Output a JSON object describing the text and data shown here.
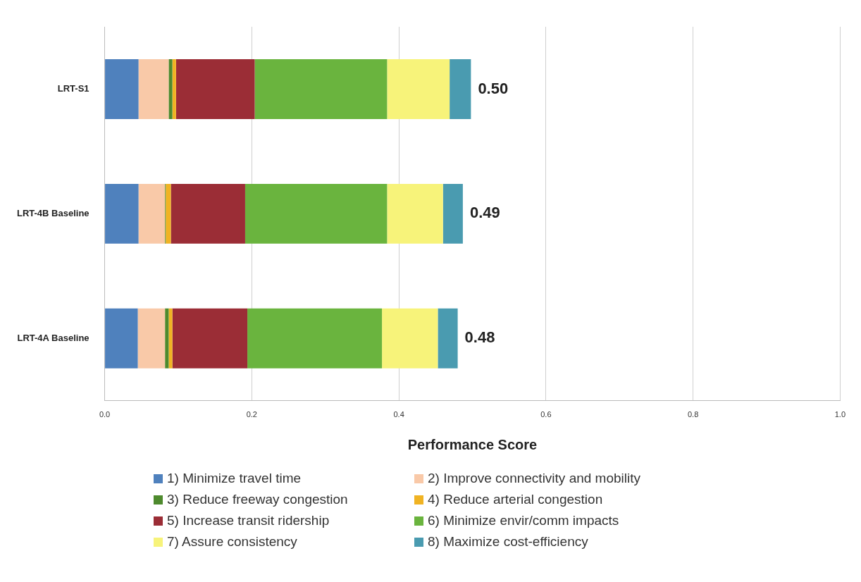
{
  "chart_data": {
    "type": "bar",
    "orientation": "horizontal",
    "stacked": true,
    "xlabel": "Performance Score",
    "categories": [
      "LRT-S1",
      "LRT-4B Baseline",
      "LRT-4A Baseline"
    ],
    "series": [
      {
        "name": "1) Minimize travel time",
        "color": "#4f81bd",
        "values": [
          0.046,
          0.046,
          0.045
        ]
      },
      {
        "name": "2) Improve connectivity and mobility",
        "color": "#f9c9a8",
        "values": [
          0.041,
          0.036,
          0.037
        ]
      },
      {
        "name": "3) Reduce freeway congestion",
        "color": "#4e8a2e",
        "values": [
          0.005,
          0.001,
          0.005
        ]
      },
      {
        "name": "4) Reduce arterial congestion",
        "color": "#f0b323",
        "values": [
          0.005,
          0.007,
          0.005
        ]
      },
      {
        "name": "5) Increase transit ridership",
        "color": "#9b2d36",
        "values": [
          0.107,
          0.101,
          0.102
        ]
      },
      {
        "name": "6) Minimize envir/comm impacts",
        "color": "#6ab43e",
        "values": [
          0.18,
          0.193,
          0.183
        ]
      },
      {
        "name": "7) Assure consistency",
        "color": "#f7f37a",
        "values": [
          0.085,
          0.076,
          0.076
        ]
      },
      {
        "name": "8) Maximize cost-efficiency",
        "color": "#4a9bb0",
        "values": [
          0.029,
          0.027,
          0.027
        ]
      }
    ],
    "totals": [
      "0.50",
      "0.49",
      "0.48"
    ],
    "xlim": [
      0,
      1
    ],
    "xticks": [
      {
        "value": 0,
        "label": "0.0"
      },
      {
        "value": 0.2,
        "label": "0.2"
      },
      {
        "value": 0.4,
        "label": "0.4"
      },
      {
        "value": 0.6,
        "label": "0.6"
      },
      {
        "value": 0.8,
        "label": "0.8"
      },
      {
        "value": 1,
        "label": "1.0"
      }
    ],
    "grid": "x",
    "legend": "bottom"
  }
}
